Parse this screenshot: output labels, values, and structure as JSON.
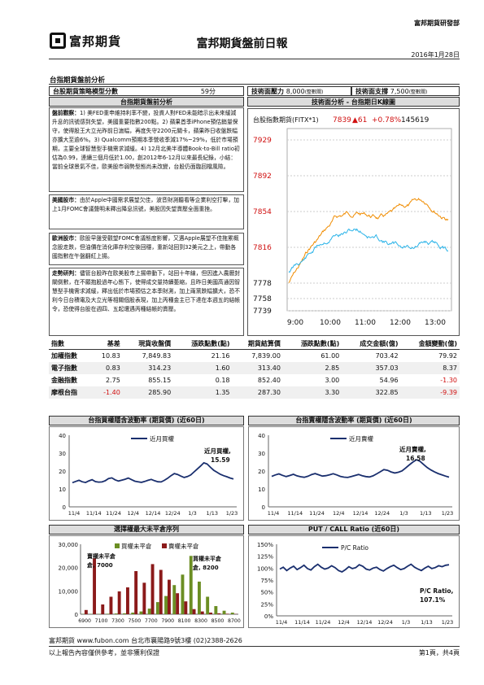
{
  "header": {
    "department": "富邦期貨研發部",
    "logo_text": "富邦期貨",
    "title": "富邦期貨盤前日報",
    "date": "2016年1月28日"
  },
  "section_title": "台指期貨盤前分析",
  "strategy": {
    "label": "台股期貨策略模型分數",
    "score": "59分",
    "pressure_label": "技術面壓力",
    "pressure_value": "8,000",
    "pressure_note": "(整數關)",
    "support_label": "技術面支撐",
    "support_value": "7,500",
    "support_note": "(整數關)"
  },
  "panels": {
    "fundamental_title": "台指期貨盤前分析",
    "technical_title": "技術面分析 - 台指期日K線圖"
  },
  "analysis": [
    {
      "label": "盤前觀察：",
      "text": "1) 美FED重申維持利率不變，投資人對FED未能暗示出未來緩減升息的訊號感到失望，美國重要指數200點。2) 蘋果首季iPhone預估銷量保守，使得股王大立光昨前日滬幅，再度失守2200元關卡，蘋果昨日收盤跌幅亦擴大至逾6%。3) Qualcomm預期本季營收季減17%~29%，低於市場預期，主要全球智慧型手機需求減緩。4) 12月北美半導體Book-to-Bill ratio初估為0.99，連續三個月低於1.00，創2012年6-12月以來最長紀錄，小結：當前全球景氣不佳，歐美股市弱勢型態尚未改變，台股仍面臨回檔風險。"
    },
    {
      "label": "美國股市：",
      "text": "由於Apple中國需求展望欠佳，波音財測聽看等企業利空打擊，加上1月FOMC會議聲明未釋出降息訊號，美股因失望賣壓全面重挫。"
    },
    {
      "label": "歐洲股市：",
      "text": "歐股早盤受觀望FOMC會議態度影響，又遇Apple展望不佳拖累概念股走跌，但油價在消化庫存利空後回穩，重新站回到32美元之上，帶動各國指數在午盤翻紅上揚。"
    },
    {
      "label": "走勢研判：",
      "text": "儘管台股昨在歐美股市上揚帶動下，站回十年線，但因進入農曆封關倒數，在不願抱股過年心態下，使得成交量持續萎縮，且昨日美國高通因智慧型手機需求減緩，釋出低於市場預估之本季財測，加上兩黨跌幅擴大，恐不利今日台積電及大立光等相關個股表現，加上丙種金主已下達在本週五的結帳令，恐使得台股在週四、五起遭遇丙種結帳的賣壓。"
    }
  ],
  "kline": {
    "label": "台股指數期貨(FITX*1)",
    "price": "7839",
    "change": "▲61",
    "pct": "+0.78%",
    "volume": "145619",
    "y_ticks": [
      "7929",
      "7892",
      "7854",
      "7816",
      "7778",
      "7758",
      "7739"
    ],
    "x_ticks": [
      "9:00",
      "10:00",
      "11:00",
      "12:00",
      "13:00"
    ]
  },
  "index_table": {
    "headers": [
      "指數",
      "基差",
      "現貨收盤價",
      "漲跌點數(點)",
      "期貨結算價",
      "漲跌點數(點)",
      "成交金額(億)",
      "金額變動(億)"
    ],
    "rows": [
      {
        "name": "加權指數",
        "basis": "10.83",
        "spot": "7,849.83",
        "spot_chg": "21.16",
        "fut": "7,839.00",
        "fut_chg": "61.00",
        "vol": "703.42",
        "vol_chg": "79.92"
      },
      {
        "name": "電子指數",
        "basis": "0.83",
        "spot": "314.23",
        "spot_chg": "1.60",
        "fut": "313.40",
        "fut_chg": "2.85",
        "vol": "357.03",
        "vol_chg": "8.37"
      },
      {
        "name": "金融指數",
        "basis": "2.75",
        "spot": "855.15",
        "spot_chg": "0.18",
        "fut": "852.40",
        "fut_chg": "3.00",
        "vol": "54.96",
        "vol_chg": "-1.30"
      },
      {
        "name": "摩根台指",
        "basis": "-1.40",
        "spot": "285.90",
        "spot_chg": "1.35",
        "fut": "287.30",
        "fut_chg": "3.30",
        "vol": "322.85",
        "vol_chg": "-9.39"
      }
    ]
  },
  "colors": {
    "up": "#d01010",
    "series_blue": "#1a2f6e",
    "oi_call": "#6b8e23",
    "oi_put": "#8b1a1a",
    "kline_orange": "#f08c00",
    "kline_blue": "#2ab3e8"
  },
  "chart_data": [
    {
      "type": "line",
      "title": "台指買權隱含波動率 (期貨價) (近60日)",
      "x_ticks": [
        "11/4",
        "11/14",
        "11/24",
        "12/4",
        "12/14",
        "12/24",
        "1/3",
        "1/13",
        "1/23"
      ],
      "ylim": [
        0,
        40
      ],
      "y_ticks": [
        "0",
        "10",
        "20",
        "30",
        "40"
      ],
      "legend": "近月買權",
      "annotation": "近月買權, 15.59",
      "series": [
        {
          "values": [
            13.5,
            14.2,
            14.8,
            14.0,
            13.6,
            14.5,
            15.2,
            14.1,
            13.8,
            13.9,
            14.6,
            15.8,
            16.2,
            15.1,
            14.4,
            14.9,
            15.4,
            16.1,
            15.2,
            14.3,
            14.0,
            13.7,
            14.2,
            14.8,
            15.3,
            14.6,
            14.0,
            13.9,
            14.8,
            16.0,
            17.4,
            18.6,
            18.1,
            17.2,
            16.4,
            16.9,
            17.8,
            19.5,
            21.2,
            22.8,
            24.6,
            23.9,
            22.1,
            20.4,
            19.3,
            18.2,
            17.4,
            16.8,
            16.1,
            15.59
          ]
        }
      ]
    },
    {
      "type": "line",
      "title": "台指賣權隱含波動率 (期貨價) (近60日)",
      "x_ticks": [
        "11/4",
        "11/14",
        "11/24",
        "12/4",
        "12/14",
        "12/24",
        "1/3",
        "1/13",
        "1/23"
      ],
      "ylim": [
        0,
        40
      ],
      "y_ticks": [
        "0",
        "10",
        "20",
        "30",
        "40"
      ],
      "legend": "近月賣權",
      "annotation": "近月賣權, 16.58",
      "series": [
        {
          "values": [
            17.0,
            17.8,
            18.4,
            17.6,
            16.9,
            17.5,
            18.2,
            17.3,
            16.8,
            16.5,
            17.1,
            18.0,
            18.6,
            17.9,
            17.2,
            17.4,
            17.9,
            18.5,
            17.8,
            17.0,
            16.6,
            16.4,
            16.9,
            17.5,
            18.1,
            17.4,
            16.9,
            16.7,
            17.3,
            18.4,
            19.6,
            20.8,
            20.4,
            19.5,
            18.9,
            19.3,
            20.1,
            21.7,
            23.4,
            25.0,
            26.3,
            25.4,
            23.6,
            21.9,
            20.6,
            19.5,
            18.6,
            17.9,
            17.2,
            16.58
          ]
        }
      ]
    },
    {
      "type": "bar",
      "title": "選擇權最大未平倉序列",
      "categories": [
        "6900",
        "7000",
        "7100",
        "7200",
        "7300",
        "7400",
        "7500",
        "7600",
        "7700",
        "7800",
        "7900",
        "8000",
        "8100",
        "8200",
        "8300",
        "8400",
        "8500",
        "8600",
        "8700"
      ],
      "x_ticks": [
        "6900",
        "7100",
        "7300",
        "7500",
        "7700",
        "7900",
        "8100",
        "8300",
        "8500",
        "8700"
      ],
      "ylim": [
        0,
        30000
      ],
      "y_ticks": [
        "0",
        "10,000",
        "20,000",
        "30,000"
      ],
      "legend": [
        "買權未平倉",
        "賣權未平倉"
      ],
      "annotations": [
        "賣權未平倉, 7000",
        "買權未平倉, 8200"
      ],
      "series": [
        {
          "name": "買權未平倉",
          "values": [
            100,
            100,
            150,
            200,
            300,
            400,
            700,
            1200,
            2400,
            5200,
            7800,
            12500,
            17000,
            25000,
            14000,
            7500,
            3500,
            1500,
            700
          ]
        },
        {
          "name": "賣權未平倉",
          "values": [
            1800,
            24000,
            4200,
            7500,
            9800,
            11500,
            18500,
            13500,
            21500,
            19000,
            14800,
            9000,
            5500,
            2200,
            1200,
            700,
            400,
            200,
            100
          ]
        }
      ]
    },
    {
      "type": "line",
      "title": "PUT / CALL Ratio (近60日)",
      "x_ticks": [
        "11/4",
        "11/14",
        "11/24",
        "12/4",
        "12/14",
        "12/24",
        "1/3",
        "1/13",
        "1/23"
      ],
      "ylim": [
        0,
        150
      ],
      "y_ticks": [
        "0%",
        "25%",
        "50%",
        "75%",
        "100%",
        "125%",
        "150%"
      ],
      "legend": "P/C Ratio",
      "annotation": "P/C Ratio, 107.1%",
      "series": [
        {
          "values": [
            98,
            102,
            95,
            100,
            104,
            97,
            101,
            106,
            99,
            96,
            103,
            108,
            102,
            98,
            100,
            105,
            101,
            95,
            92,
            97,
            103,
            99,
            101,
            107,
            104,
            98,
            96,
            100,
            102,
            97,
            94,
            99,
            103,
            106,
            101,
            97,
            99,
            104,
            108,
            102,
            98,
            95,
            100,
            104,
            99,
            101,
            105,
            103,
            106,
            107.1
          ]
        }
      ]
    }
  ],
  "footer": {
    "line1": "富邦期貨 www.fubon.com 台北市襄陽路9號3樓 (02)2388-2626",
    "line2": "以上報告內容僅供參考，並非獲利保證",
    "page": "第1頁，共4頁"
  }
}
